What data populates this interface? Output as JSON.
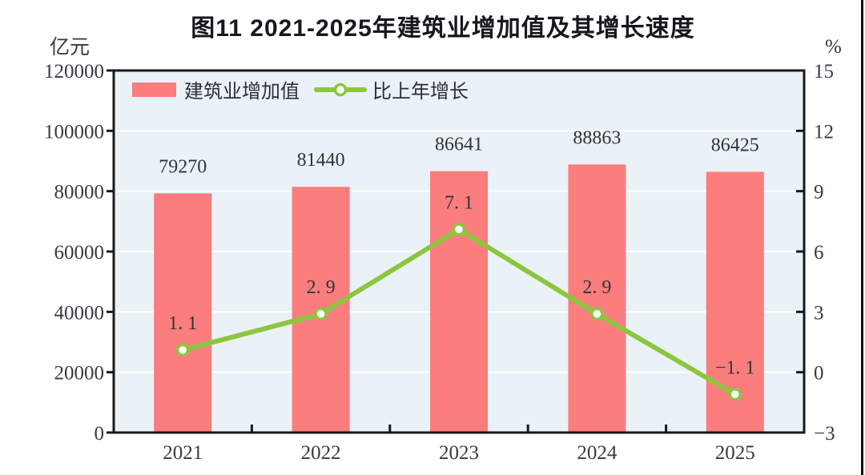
{
  "chart_data": {
    "type": "combo",
    "title": "图11  2021-2025年建筑业增加值及其增长速度",
    "categories": [
      "2021",
      "2022",
      "2023",
      "2024",
      "2025"
    ],
    "series": [
      {
        "name": "建筑业增加值",
        "type": "bar",
        "axis": "left",
        "color": "#FB7D7D",
        "values": [
          79270,
          81440,
          86641,
          88863,
          86425
        ],
        "labels": [
          "79270",
          "81440",
          "86641",
          "88863",
          "86425"
        ]
      },
      {
        "name": "比上年增长",
        "type": "line",
        "axis": "right",
        "color": "#8CC63E",
        "marker_fill": "#FFFFFF",
        "values": [
          1.1,
          2.9,
          7.1,
          2.9,
          -1.1
        ],
        "labels": [
          "1. 1",
          "2. 9",
          "7. 1",
          "2. 9",
          "−1. 1"
        ]
      }
    ],
    "left_axis": {
      "unit": "亿元",
      "min": 0,
      "max": 120000,
      "tick_step": 20000,
      "tick_labels": [
        "120000",
        "100000",
        "80000",
        "60000",
        "40000",
        "20000",
        "0"
      ]
    },
    "right_axis": {
      "unit": "%",
      "min": -3,
      "max": 15,
      "tick_step": 3,
      "tick_labels": [
        "15",
        "12",
        "9",
        "6",
        "3",
        "0",
        "−3"
      ]
    },
    "legend_position": "top-left",
    "grid": true,
    "colors": {
      "plot_bg": "#EAF2F7",
      "grid": "#FFFFFF",
      "axis": "#17191c",
      "page_border": "#101010"
    }
  }
}
